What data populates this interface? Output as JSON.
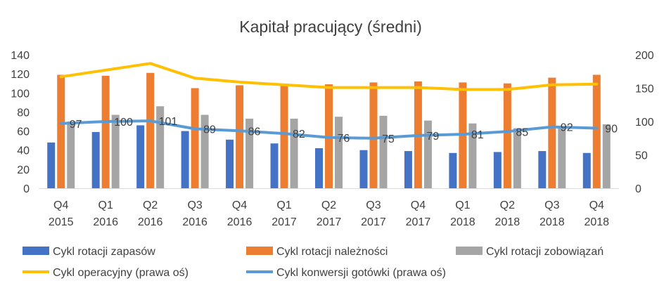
{
  "chart_data": {
    "type": "bar",
    "title": "Kapitał pracujący (średni)",
    "categories": [
      [
        "Q4",
        "2015"
      ],
      [
        "Q1",
        "2016"
      ],
      [
        "Q2",
        "2016"
      ],
      [
        "Q3",
        "2016"
      ],
      [
        "Q4",
        "2016"
      ],
      [
        "Q1",
        "2017"
      ],
      [
        "Q2",
        "2017"
      ],
      [
        "Q3",
        "2017"
      ],
      [
        "Q4",
        "2017"
      ],
      [
        "Q1",
        "2018"
      ],
      [
        "Q2",
        "2018"
      ],
      [
        "Q3",
        "2018"
      ],
      [
        "Q4",
        "2018"
      ]
    ],
    "ylim_left": [
      0,
      140
    ],
    "yticks_left": [
      0,
      20,
      40,
      60,
      80,
      100,
      120,
      140
    ],
    "ylim_right": [
      0,
      200
    ],
    "yticks_right": [
      0,
      50,
      100,
      150,
      200
    ],
    "grid": false,
    "legend_position": "bottom",
    "bar_series": [
      {
        "name": "Cykl rotacji zapasów",
        "color": "#4472C4",
        "values": [
          48,
          59,
          66,
          60,
          51,
          47,
          42,
          40,
          39,
          37,
          38,
          39,
          37
        ]
      },
      {
        "name": "Cykl rotacji należności",
        "color": "#ED7D31",
        "values": [
          119,
          118,
          121,
          105,
          108,
          108,
          109,
          111,
          112,
          111,
          110,
          116,
          119
        ]
      },
      {
        "name": "Cykl rotacji zobowiązań",
        "color": "#A5A5A5",
        "values": [
          70,
          77,
          86,
          77,
          73,
          73,
          75,
          76,
          71,
          68,
          63,
          63,
          67
        ]
      }
    ],
    "line_series": [
      {
        "name": "Cykl operacyjny (prawa oś)",
        "color": "#FFC000",
        "axis": "right",
        "values": [
          167,
          177,
          187,
          165,
          159,
          155,
          151,
          151,
          151,
          148,
          148,
          155,
          156
        ]
      },
      {
        "name": "Cykl konwersji gotówki (prawa oś)",
        "color": "#5B9BD5",
        "axis": "right",
        "values": [
          97,
          100,
          101,
          89,
          86,
          82,
          76,
          75,
          79,
          81,
          85,
          92,
          90
        ],
        "labels": [
          "97",
          "100",
          "101",
          "89",
          "86",
          "82",
          "76",
          "75",
          "79",
          "81",
          "85",
          "92",
          "90"
        ]
      }
    ]
  }
}
